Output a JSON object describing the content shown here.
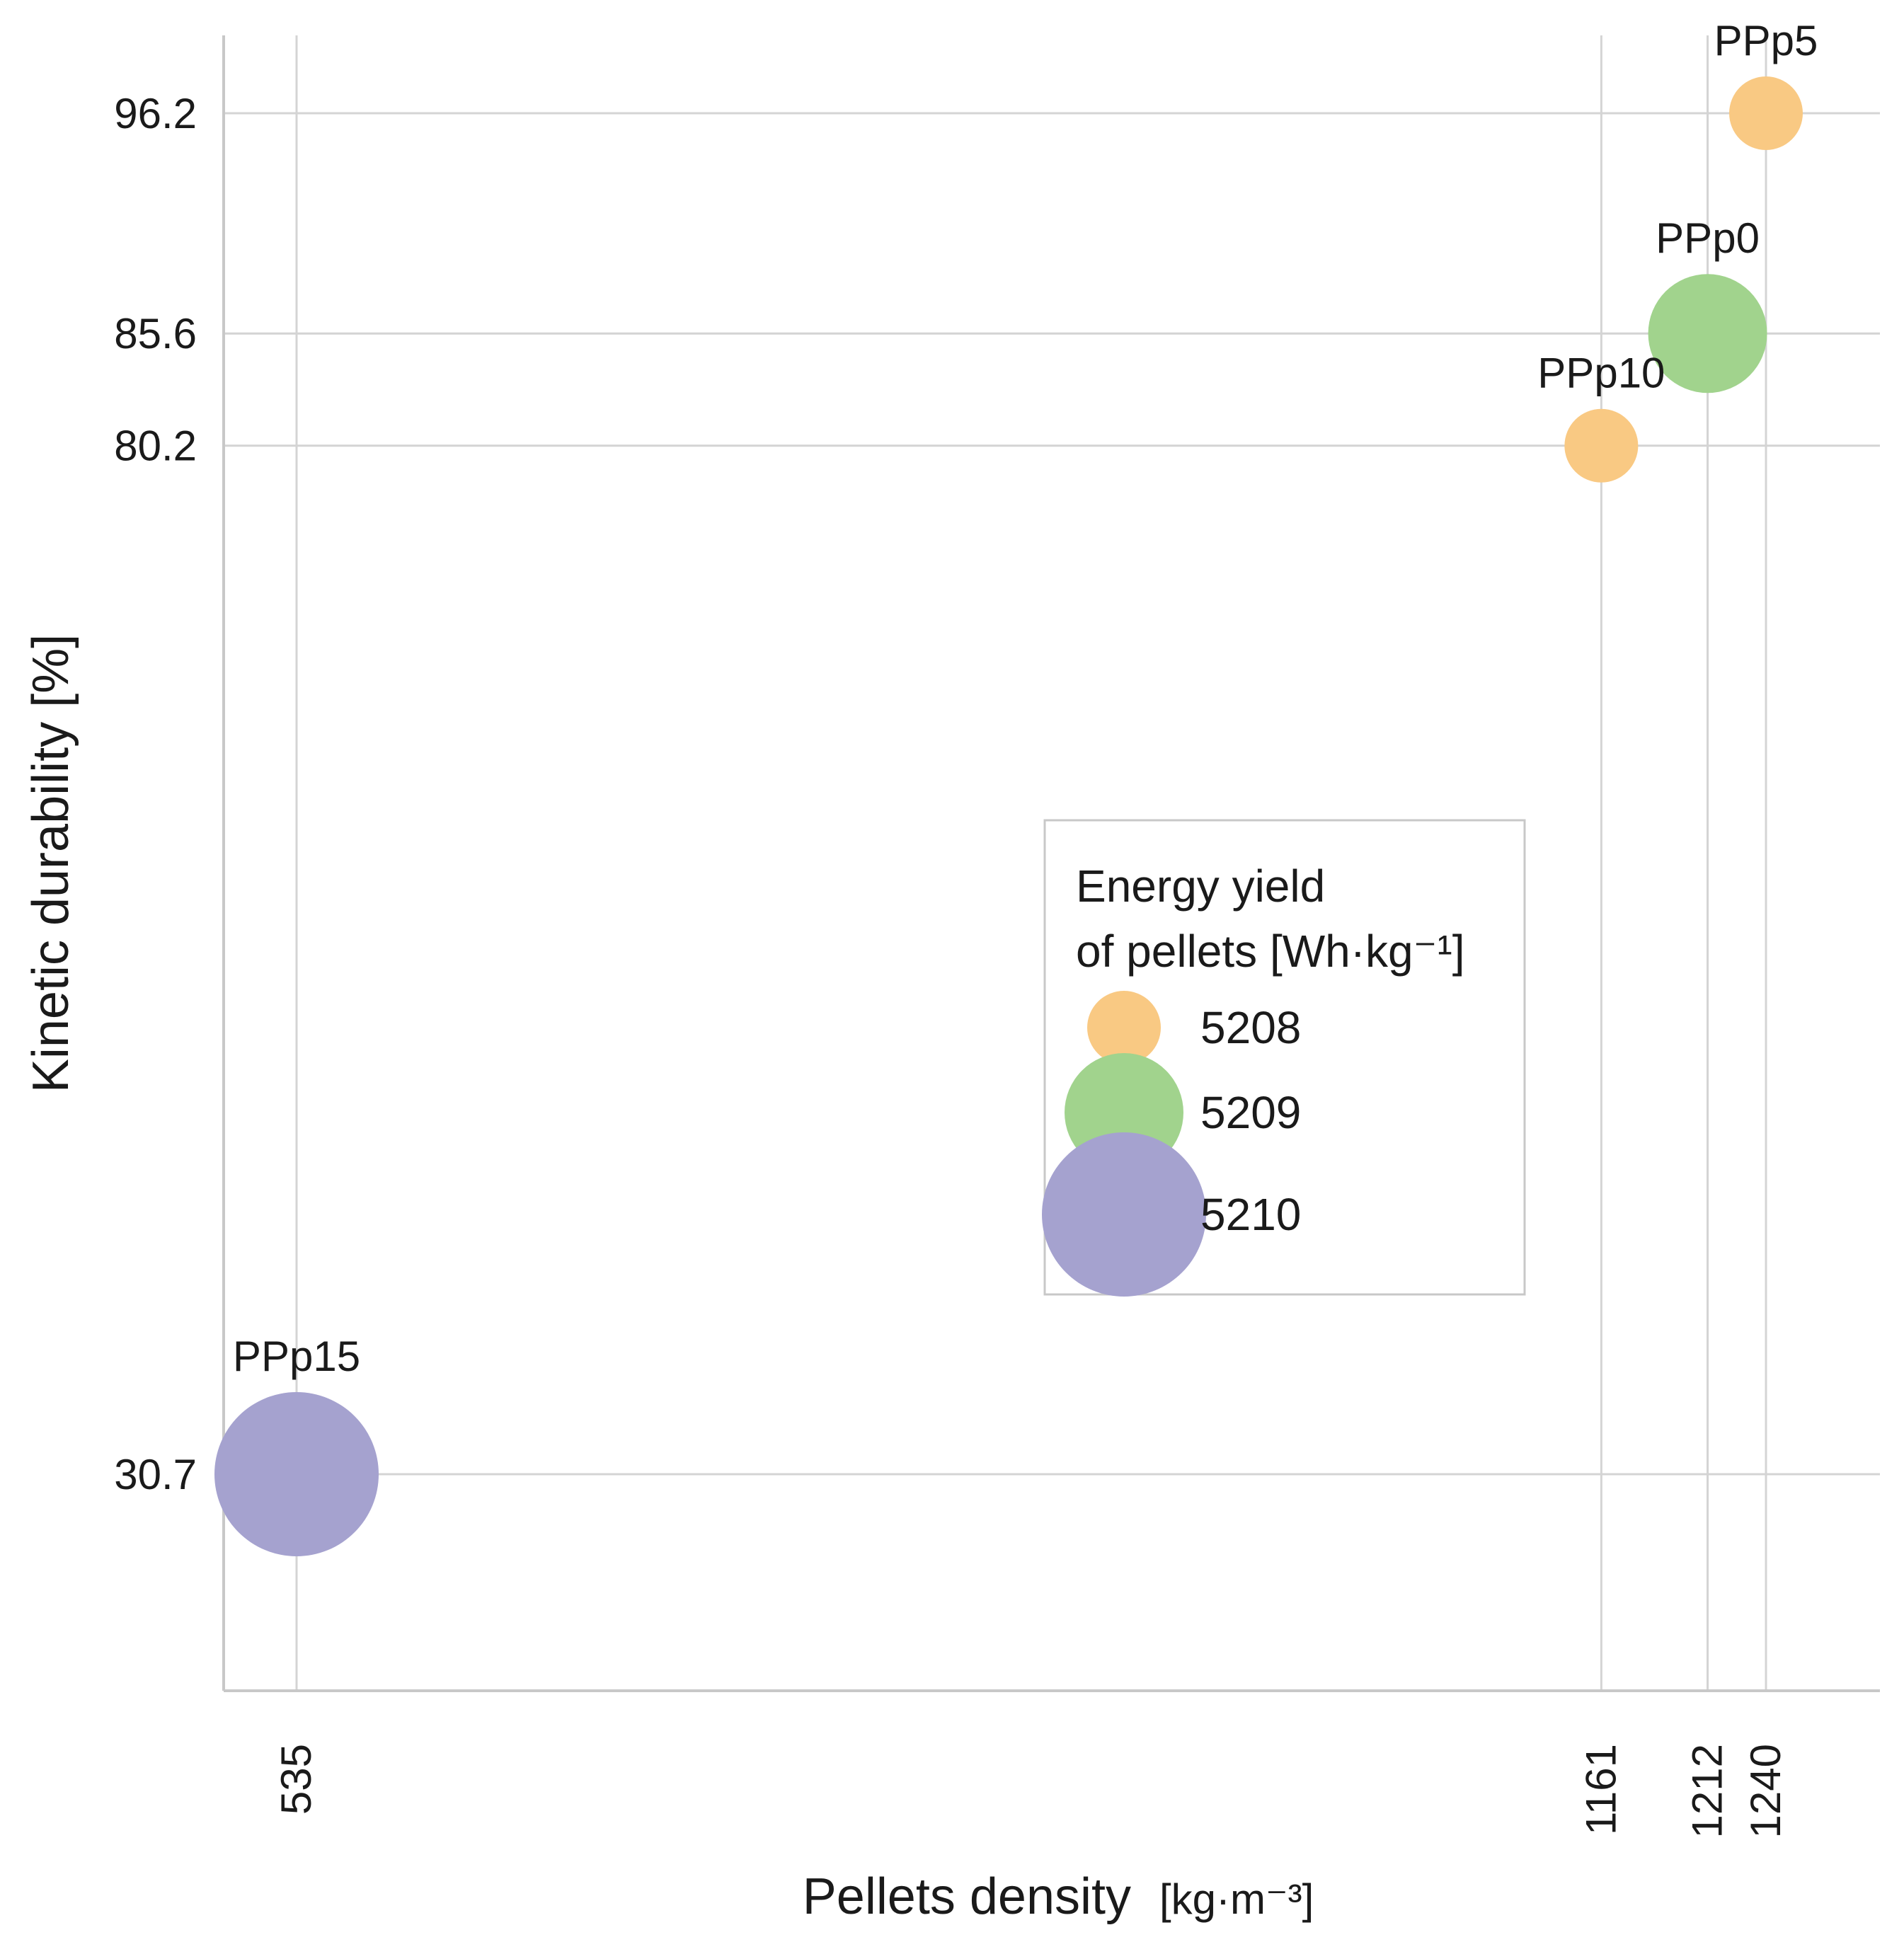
{
  "chart_data": {
    "type": "scatter",
    "variant": "bubble",
    "title": "",
    "xlabel": "Pellets density",
    "xunit": "[kg·m⁻³]",
    "ylabel": "Kinetic durability [%]",
    "x_ticks": [
      535,
      1161,
      1212,
      1240
    ],
    "y_ticks": [
      30.7,
      80.2,
      85.6,
      96.2
    ],
    "xlim": [
      500,
      1300
    ],
    "ylim": [
      20,
      100
    ],
    "grid": true,
    "points": [
      {
        "label": "PPp5",
        "x": 1240,
        "y": 96.2,
        "energy_yield": 5208,
        "color": "#f9c983"
      },
      {
        "label": "PPp0",
        "x": 1212,
        "y": 85.6,
        "energy_yield": 5209,
        "color": "#a1d38d"
      },
      {
        "label": "PPp10",
        "x": 1161,
        "y": 80.2,
        "energy_yield": 5208,
        "color": "#f9c983"
      },
      {
        "label": "PPp15",
        "x": 535,
        "y": 30.7,
        "energy_yield": 5210,
        "color": "#a5a2cf"
      }
    ],
    "legend": {
      "title_line1": "Energy yield",
      "title_line2": "of pellets [Wh·kg⁻¹]",
      "placement": "center-right",
      "entries": [
        {
          "label": "5208",
          "color": "#f9c983"
        },
        {
          "label": "5209",
          "color": "#a1d38d"
        },
        {
          "label": "5210",
          "color": "#a5a2cf"
        }
      ]
    }
  }
}
